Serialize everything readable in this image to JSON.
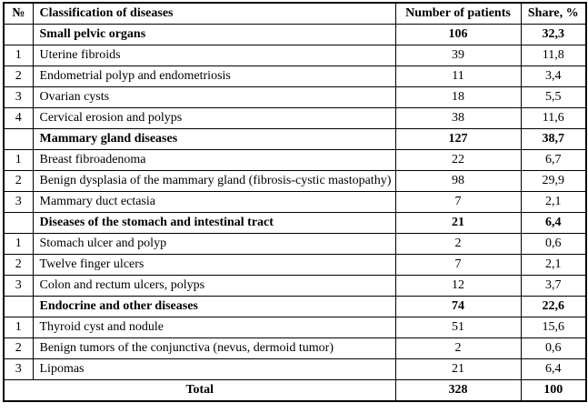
{
  "table": {
    "columns": [
      "№",
      "Classification of diseases",
      "Number of patients",
      "Share, %"
    ],
    "rows": [
      {
        "num": "",
        "name": "Small pelvic organs",
        "patients": "106",
        "share": "32,3",
        "bold": true
      },
      {
        "num": "1",
        "name": "Uterine fibroids",
        "patients": "39",
        "share": "11,8",
        "bold": false
      },
      {
        "num": "2",
        "name": "Endometrial polyp and endometriosis",
        "patients": "11",
        "share": "3,4",
        "bold": false
      },
      {
        "num": "3",
        "name": "Ovarian cysts",
        "patients": "18",
        "share": "5,5",
        "bold": false
      },
      {
        "num": "4",
        "name": "Cervical erosion and polyps",
        "patients": "38",
        "share": "11,6",
        "bold": false
      },
      {
        "num": "",
        "name": "Mammary gland diseases",
        "patients": "127",
        "share": "38,7",
        "bold": true
      },
      {
        "num": "1",
        "name": "Breast fibroadenoma",
        "patients": "22",
        "share": "6,7",
        "bold": false
      },
      {
        "num": "2",
        "name": "Benign dysplasia of the mammary gland (fibrosis-cystic mastopathy)",
        "patients": "98",
        "share": "29,9",
        "bold": false
      },
      {
        "num": "3",
        "name": "Mammary duct ectasia",
        "patients": "7",
        "share": "2,1",
        "bold": false
      },
      {
        "num": "",
        "name": "Diseases of the stomach and intestinal tract",
        "patients": "21",
        "share": "6,4",
        "bold": true
      },
      {
        "num": "1",
        "name": "Stomach ulcer and polyp",
        "patients": "2",
        "share": "0,6",
        "bold": false
      },
      {
        "num": "2",
        "name": "Twelve finger ulcers",
        "patients": "7",
        "share": "2,1",
        "bold": false
      },
      {
        "num": "3",
        "name": "Colon and rectum ulcers, polyps",
        "patients": "12",
        "share": "3,7",
        "bold": false
      },
      {
        "num": "",
        "name": "Endocrine and other diseases",
        "patients": "74",
        "share": "22,6",
        "bold": true
      },
      {
        "num": "1",
        "name": "Thyroid cyst and nodule",
        "patients": "51",
        "share": "15,6",
        "bold": false
      },
      {
        "num": "2",
        "name": "Benign tumors of the conjunctiva (nevus, dermoid tumor)",
        "patients": "2",
        "share": "0,6",
        "bold": false
      },
      {
        "num": "3",
        "name": "Lipomas",
        "patients": "21",
        "share": "6,4",
        "bold": false
      }
    ],
    "total_row": {
      "label": "Total",
      "patients": "328",
      "share": "100"
    }
  },
  "colors": {
    "border": "#000000",
    "text": "#000000",
    "background": "#ffffff"
  }
}
